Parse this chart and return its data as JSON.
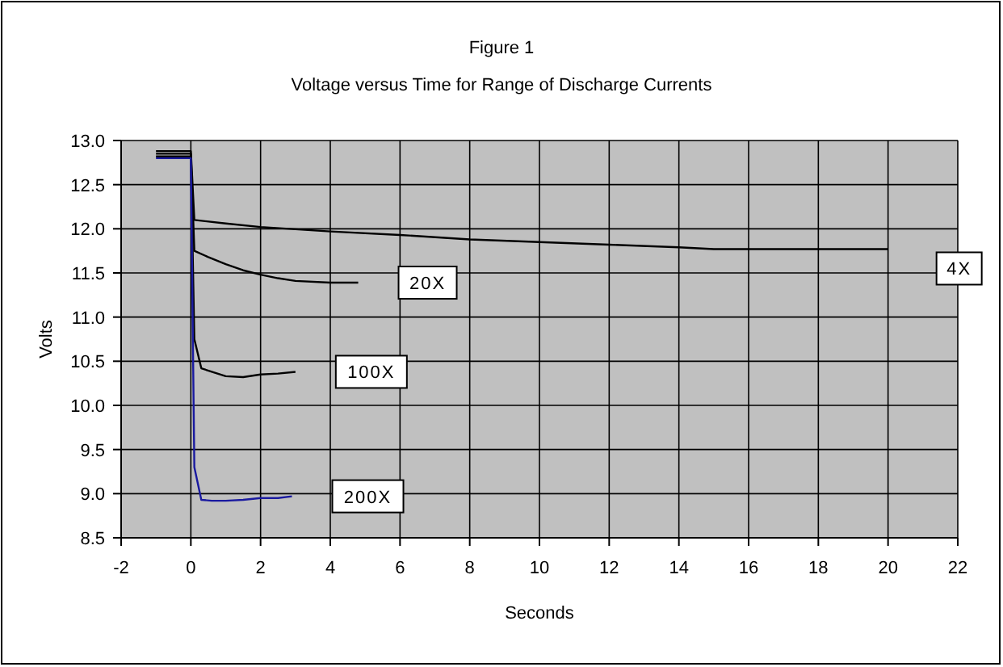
{
  "chart_data": {
    "type": "line",
    "title": "Figure 1",
    "subtitle": "Voltage versus Time for Range of Discharge Currents",
    "xlabel": "Seconds",
    "ylabel": "Volts",
    "xlim": [
      -2,
      22
    ],
    "xticks": [
      -2,
      0,
      2,
      4,
      6,
      8,
      10,
      12,
      14,
      16,
      18,
      20,
      22
    ],
    "ylim": [
      8.5,
      13
    ],
    "yticks": [
      {
        "value": 8.5,
        "label": "8.5"
      },
      {
        "value": 9,
        "label": "9.0"
      },
      {
        "value": 9.5,
        "label": "9.5"
      },
      {
        "value": 10,
        "label": "10.0"
      },
      {
        "value": 10.5,
        "label": "10.5"
      },
      {
        "value": 11,
        "label": "11.0"
      },
      {
        "value": 11.5,
        "label": "11.5"
      },
      {
        "value": 12,
        "label": "12.0"
      },
      {
        "value": 12.5,
        "label": "12.5"
      },
      {
        "value": 13,
        "label": "13.0"
      }
    ],
    "grid": true,
    "marker": "none",
    "line_style": "solid",
    "series": [
      {
        "name": "4X",
        "color": "#000000",
        "x": [
          -1,
          0,
          0.1,
          1,
          2,
          4,
          6,
          8,
          10,
          12,
          14,
          15,
          17,
          20
        ],
        "values": [
          12.88,
          12.88,
          12.1,
          12.06,
          12.02,
          11.97,
          11.93,
          11.88,
          11.85,
          11.82,
          11.79,
          11.77,
          11.77,
          11.77
        ]
      },
      {
        "name": "20X",
        "color": "#000000",
        "x": [
          -1,
          0,
          0.1,
          0.5,
          1,
          1.5,
          2,
          2.5,
          3,
          4,
          4.8
        ],
        "values": [
          12.85,
          12.85,
          11.75,
          11.68,
          11.6,
          11.53,
          11.48,
          11.44,
          11.41,
          11.39,
          11.39
        ]
      },
      {
        "name": "100X",
        "color": "#000000",
        "x": [
          -1,
          0,
          0.1,
          0.3,
          0.6,
          1,
          1.5,
          2,
          2.5,
          3
        ],
        "values": [
          12.82,
          12.82,
          10.75,
          10.42,
          10.38,
          10.33,
          10.32,
          10.35,
          10.36,
          10.38
        ]
      },
      {
        "name": "200X",
        "color": "#1a1aa0",
        "x": [
          -1,
          0,
          0.1,
          0.3,
          0.6,
          1,
          1.5,
          2,
          2.5,
          2.9
        ],
        "values": [
          12.8,
          12.8,
          9.3,
          8.93,
          8.92,
          8.92,
          8.93,
          8.95,
          8.95,
          8.97
        ]
      }
    ]
  }
}
